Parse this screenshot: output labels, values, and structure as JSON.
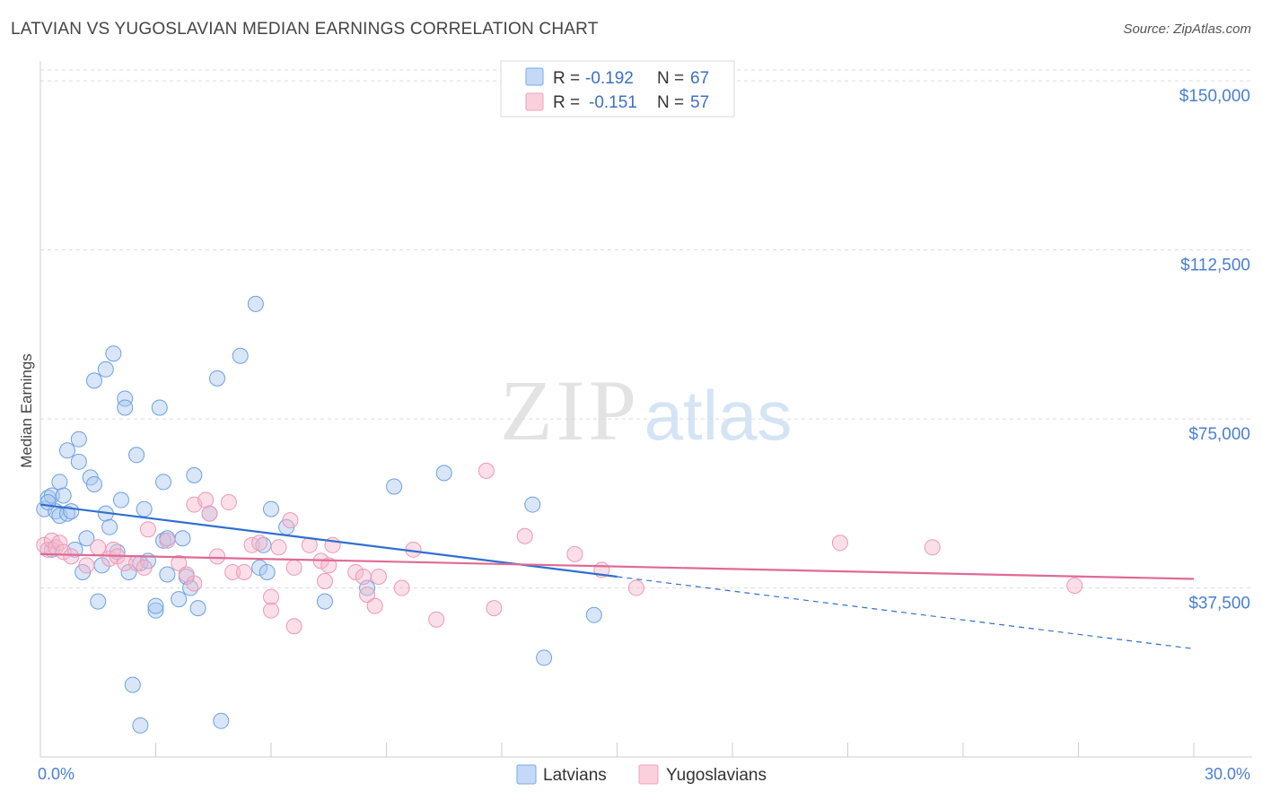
{
  "header": {
    "title": "LATVIAN VS YUGOSLAVIAN MEDIAN EARNINGS CORRELATION CHART",
    "source": "Source: ZipAtlas.com"
  },
  "watermark": {
    "zip": "ZIP",
    "atlas": "atlas"
  },
  "legend": {
    "rows": [
      {
        "r_label": "R =",
        "r_value": "-0.192",
        "n_label": "N =",
        "n_value": "67",
        "color": "#a8c8f0"
      },
      {
        "r_label": "R =",
        "r_value": "-0.151",
        "n_label": "N =",
        "n_value": "57",
        "color": "#f5b8cc"
      }
    ]
  },
  "chart_data": {
    "type": "scatter",
    "title": "LATVIAN VS YUGOSLAVIAN MEDIAN EARNINGS CORRELATION CHART",
    "xlabel": "",
    "ylabel": "Median Earnings",
    "xlim": [
      0,
      30
    ],
    "ylim": [
      0,
      156000
    ],
    "x_tick_labels": [
      "0.0%",
      "30.0%"
    ],
    "y_ticks": [
      {
        "value": 37500,
        "label": "$37,500"
      },
      {
        "value": 75000,
        "label": "$75,000"
      },
      {
        "value": 112500,
        "label": "$112,500"
      },
      {
        "value": 150000,
        "label": "$150,000"
      }
    ],
    "grid": true,
    "legend_position": "top-center",
    "series": [
      {
        "name": "Latvians",
        "color": "#7aaae8",
        "trend": {
          "x": [
            0,
            15
          ],
          "y": [
            56000,
            40000
          ],
          "dashed_to": [
            30,
            24000
          ]
        },
        "points": [
          [
            0.1,
            55000
          ],
          [
            0.2,
            57500
          ],
          [
            0.3,
            58000
          ],
          [
            0.4,
            54500
          ],
          [
            0.5,
            53500
          ],
          [
            0.5,
            61000
          ],
          [
            0.6,
            58000
          ],
          [
            0.7,
            68000
          ],
          [
            0.7,
            54000
          ],
          [
            0.8,
            54500
          ],
          [
            0.9,
            46000
          ],
          [
            1.0,
            70500
          ],
          [
            1.0,
            65500
          ],
          [
            1.1,
            41000
          ],
          [
            1.2,
            48500
          ],
          [
            1.3,
            62000
          ],
          [
            1.4,
            60500
          ],
          [
            1.4,
            83500
          ],
          [
            1.5,
            34500
          ],
          [
            1.6,
            42500
          ],
          [
            1.7,
            86000
          ],
          [
            1.7,
            54000
          ],
          [
            1.8,
            51000
          ],
          [
            1.9,
            89500
          ],
          [
            2.0,
            45500
          ],
          [
            2.1,
            57000
          ],
          [
            2.2,
            79500
          ],
          [
            2.2,
            77500
          ],
          [
            2.3,
            41000
          ],
          [
            2.4,
            16000
          ],
          [
            2.5,
            67000
          ],
          [
            2.6,
            7000
          ],
          [
            2.6,
            43000
          ],
          [
            2.7,
            55000
          ],
          [
            2.8,
            43500
          ],
          [
            3.0,
            32500
          ],
          [
            3.0,
            33500
          ],
          [
            3.1,
            77500
          ],
          [
            3.2,
            61000
          ],
          [
            3.2,
            48000
          ],
          [
            3.3,
            48500
          ],
          [
            3.3,
            40500
          ],
          [
            3.6,
            35000
          ],
          [
            3.7,
            48500
          ],
          [
            3.8,
            40000
          ],
          [
            3.9,
            37500
          ],
          [
            4.0,
            62500
          ],
          [
            4.1,
            33000
          ],
          [
            4.4,
            54000
          ],
          [
            4.6,
            84000
          ],
          [
            4.7,
            8000
          ],
          [
            5.2,
            89000
          ],
          [
            5.6,
            100500
          ],
          [
            5.7,
            42000
          ],
          [
            5.8,
            47000
          ],
          [
            5.9,
            41000
          ],
          [
            6.0,
            55000
          ],
          [
            6.4,
            51000
          ],
          [
            7.4,
            34500
          ],
          [
            8.5,
            37500
          ],
          [
            9.2,
            60000
          ],
          [
            10.5,
            63000
          ],
          [
            12.8,
            56000
          ],
          [
            13.1,
            22000
          ],
          [
            14.4,
            31500
          ],
          [
            0.2,
            56500
          ],
          [
            0.3,
            46000
          ]
        ]
      },
      {
        "name": "Yugoslavians",
        "color": "#f0a0bc",
        "trend": {
          "x": [
            0,
            30
          ],
          "y": [
            45000,
            39500
          ]
        },
        "points": [
          [
            0.1,
            47000
          ],
          [
            0.2,
            46000
          ],
          [
            0.3,
            48000
          ],
          [
            0.4,
            46500
          ],
          [
            0.5,
            47500
          ],
          [
            0.6,
            45500
          ],
          [
            0.8,
            44500
          ],
          [
            1.2,
            42500
          ],
          [
            1.5,
            46500
          ],
          [
            1.8,
            44000
          ],
          [
            1.9,
            46000
          ],
          [
            2.0,
            44500
          ],
          [
            2.2,
            43000
          ],
          [
            2.5,
            43000
          ],
          [
            2.7,
            42000
          ],
          [
            2.8,
            50500
          ],
          [
            3.3,
            48000
          ],
          [
            3.6,
            43000
          ],
          [
            3.8,
            40500
          ],
          [
            4.0,
            38500
          ],
          [
            4.0,
            56000
          ],
          [
            4.3,
            57000
          ],
          [
            4.4,
            54000
          ],
          [
            4.6,
            44500
          ],
          [
            4.9,
            56500
          ],
          [
            5.0,
            41000
          ],
          [
            5.3,
            41000
          ],
          [
            5.5,
            47000
          ],
          [
            5.7,
            47500
          ],
          [
            6.0,
            35500
          ],
          [
            6.0,
            32500
          ],
          [
            6.2,
            46500
          ],
          [
            6.5,
            52500
          ],
          [
            6.6,
            42000
          ],
          [
            6.6,
            29000
          ],
          [
            7.0,
            47000
          ],
          [
            7.3,
            43500
          ],
          [
            7.4,
            39000
          ],
          [
            7.5,
            42500
          ],
          [
            7.6,
            47000
          ],
          [
            8.2,
            41000
          ],
          [
            8.4,
            40000
          ],
          [
            8.5,
            36000
          ],
          [
            8.7,
            33500
          ],
          [
            8.8,
            40000
          ],
          [
            9.4,
            37500
          ],
          [
            9.7,
            46000
          ],
          [
            10.3,
            30500
          ],
          [
            11.6,
            63500
          ],
          [
            11.8,
            33000
          ],
          [
            12.6,
            49000
          ],
          [
            13.9,
            45000
          ],
          [
            14.6,
            41500
          ],
          [
            15.5,
            37500
          ],
          [
            20.8,
            47500
          ],
          [
            23.2,
            46500
          ],
          [
            26.9,
            38000
          ]
        ]
      }
    ]
  },
  "bottom_legend": {
    "items": [
      "Latvians",
      "Yugoslavians"
    ]
  }
}
